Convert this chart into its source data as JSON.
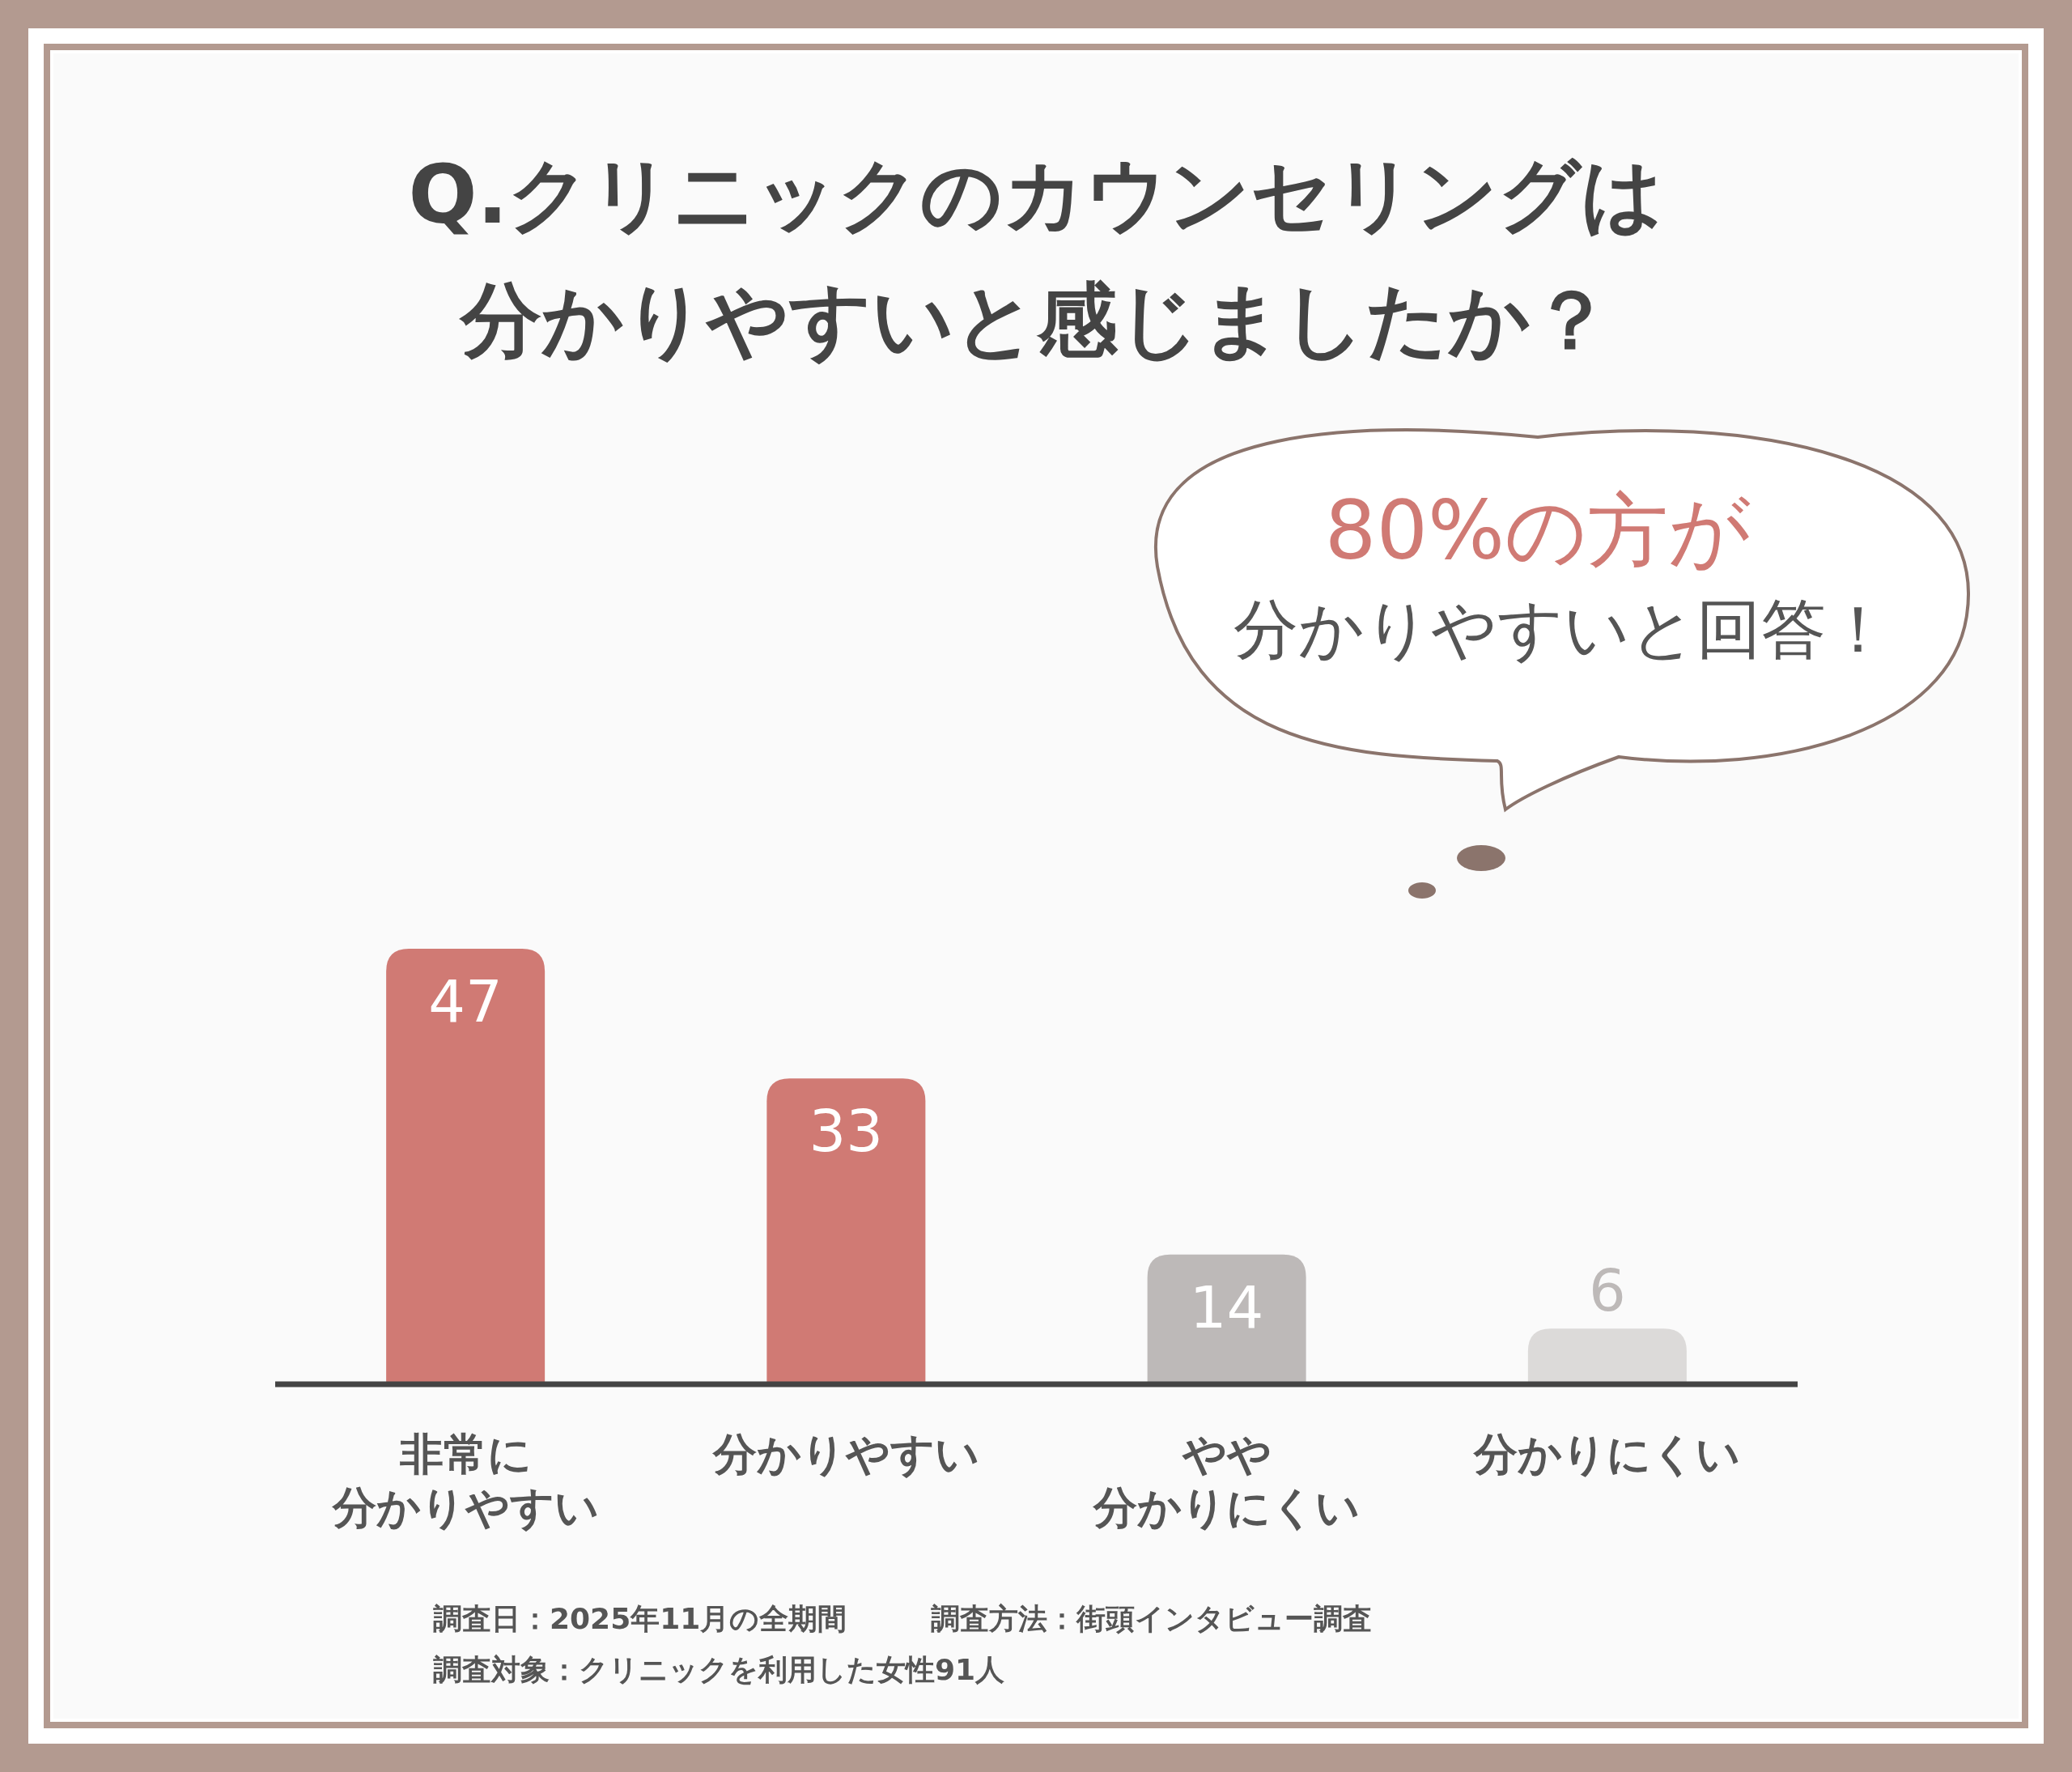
{
  "chart_data": {
    "type": "bar",
    "title": "Q.クリニックのカウンセリングは分かりやすいと感じましたか？",
    "categories": [
      "非常に分かりやすい",
      "分かりやすい",
      "やや分かりにくい",
      "分かりにくい"
    ],
    "values": [
      47,
      33,
      14,
      6
    ],
    "colors": [
      "#d07a74",
      "#d07a74",
      "#bdb9b8",
      "#dcdad9"
    ],
    "data_labels": true,
    "annotations": [
      "80%の方が",
      "分かりやすいと回答！",
      "調査日：2025年11月の全期間",
      "調査方法：街頭インタビュー調査",
      "調査対象：クリニックを利用した女性91人"
    ]
  }
}
